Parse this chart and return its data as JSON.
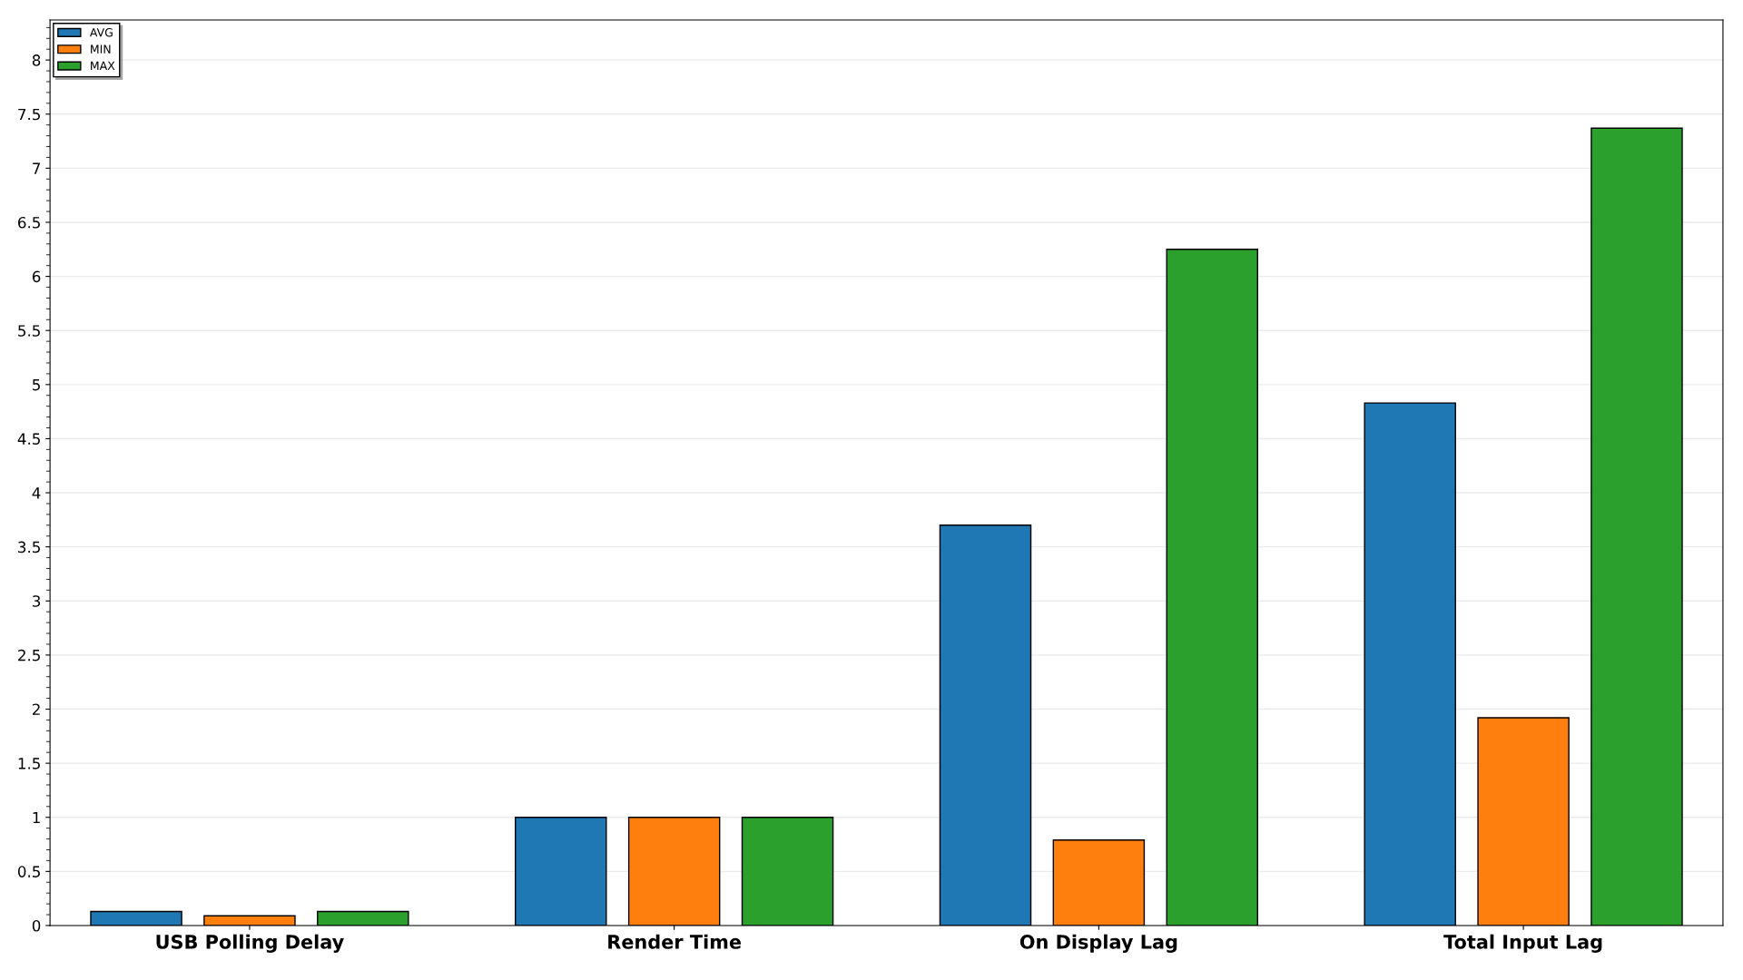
{
  "chart_data": {
    "type": "bar",
    "categories": [
      "USB Polling Delay",
      "Render Time",
      "On Display Lag",
      "Total Input Lag"
    ],
    "series": [
      {
        "name": "AVG",
        "color": "#1f77b4",
        "values": [
          0.13,
          1.0,
          3.7,
          4.83
        ]
      },
      {
        "name": "MIN",
        "color": "#ff7f0e",
        "values": [
          0.09,
          1.0,
          0.79,
          1.92
        ]
      },
      {
        "name": "MAX",
        "color": "#2ca02c",
        "values": [
          0.13,
          1.0,
          6.25,
          7.37
        ]
      }
    ],
    "ylim": [
      0,
      8.37
    ],
    "yticks": [
      0,
      0.5,
      1,
      1.5,
      2,
      2.5,
      3,
      3.5,
      4,
      4.5,
      5,
      5.5,
      6,
      6.5,
      7,
      7.5,
      8
    ],
    "grid": "y",
    "legend": "top left"
  }
}
